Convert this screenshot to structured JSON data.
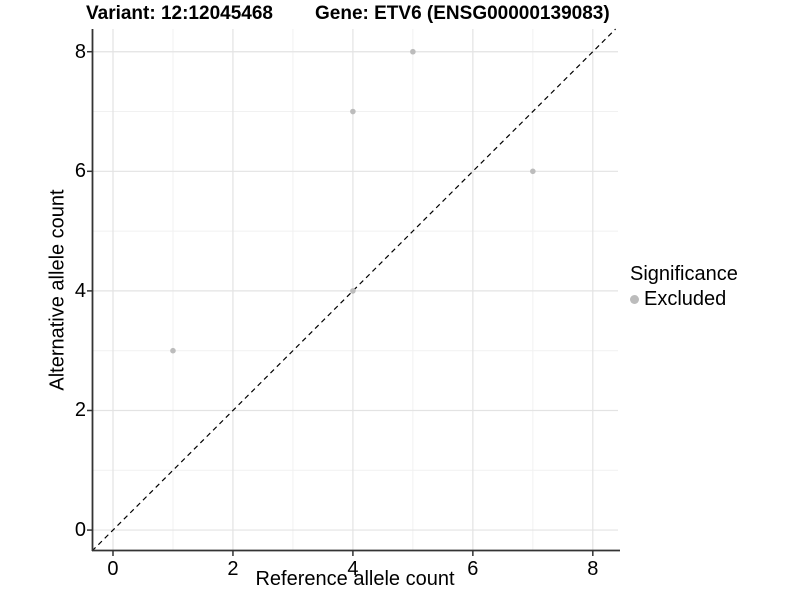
{
  "page": {
    "background": "#ffffff"
  },
  "chart_data": {
    "type": "scatter",
    "title_left": "Variant: 12:12045468",
    "title_right": "Gene: ETV6 (ENSG00000139083)",
    "xlabel": "Reference allele count",
    "ylabel": "Alternative allele count",
    "legend_title": "Significance",
    "legend_position": "right",
    "xlim": [
      -0.35,
      8.42
    ],
    "ylim": [
      -0.35,
      8.38
    ],
    "x_ticks": [
      0,
      2,
      4,
      6,
      8
    ],
    "y_ticks": [
      0,
      2,
      4,
      6,
      8
    ],
    "x_minor_ticks": [
      1,
      3,
      5,
      7
    ],
    "y_minor_ticks": [
      1,
      3,
      5,
      7
    ],
    "grid": true,
    "identity_line": {
      "slope": 1,
      "intercept": 0,
      "style": "dashed",
      "color": "#000000"
    },
    "series": [
      {
        "name": "Excluded",
        "color": "#bcbcbc",
        "points": [
          [
            1,
            3
          ],
          [
            4,
            4
          ],
          [
            4,
            7
          ],
          [
            5,
            8
          ],
          [
            7,
            6
          ]
        ]
      }
    ],
    "colors": {
      "grid_major": "#e3e3e3",
      "grid_minor": "#f1f1f1",
      "axis_line": "#333333",
      "tick_mark": "#333333"
    }
  }
}
